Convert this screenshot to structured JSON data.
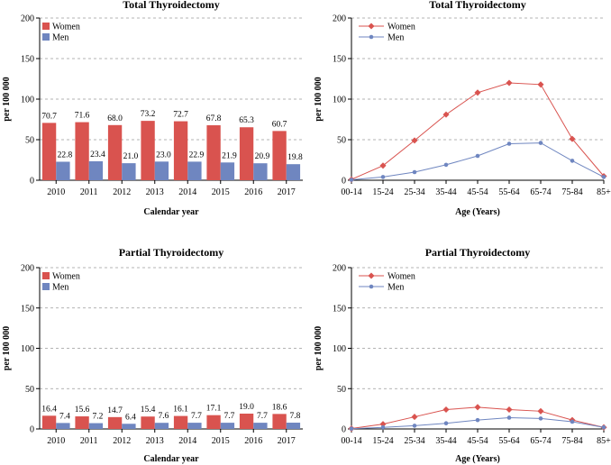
{
  "chart_data": [
    {
      "id": "c1",
      "type": "bar",
      "title": "Total Thyroidectomy",
      "xlabel": "Calendar year",
      "ylabel": "per 100 000",
      "ylim": [
        0,
        200
      ],
      "yticks": [
        0,
        50,
        100,
        150,
        200
      ],
      "categories": [
        "2010",
        "2011",
        "2012",
        "2013",
        "2014",
        "2015",
        "2016",
        "2017"
      ],
      "series": [
        {
          "name": "Women",
          "color": "#d9534f",
          "values": [
            70.7,
            71.6,
            68.0,
            73.2,
            72.7,
            67.8,
            65.3,
            60.7
          ],
          "labels": [
            "70.7",
            "71.6",
            "68.0",
            "73.2",
            "72.7",
            "67.8",
            "65.3",
            "60.7"
          ]
        },
        {
          "name": "Men",
          "color": "#6f86c0",
          "values": [
            22.8,
            23.4,
            21.0,
            23.0,
            22.9,
            21.9,
            20.9,
            19.8
          ],
          "labels": [
            "22.8",
            "23.4",
            "21.0",
            "23.0",
            "22.9",
            "21.9",
            "20.9",
            "19.8"
          ]
        }
      ],
      "grid": true,
      "legend": "top-left"
    },
    {
      "id": "c2",
      "type": "line",
      "title": "Total Thyroidectomy",
      "xlabel": "Age (Years)",
      "ylabel": "per 100 000",
      "ylim": [
        0,
        200
      ],
      "yticks": [
        0,
        50,
        100,
        150,
        200
      ],
      "categories": [
        "00-14",
        "15-24",
        "25-34",
        "35-44",
        "45-54",
        "55-64",
        "65-74",
        "75-84",
        "85+"
      ],
      "series": [
        {
          "name": "Women",
          "color": "#d9534f",
          "values": [
            1,
            18,
            49,
            81,
            108,
            120,
            118,
            51,
            5
          ]
        },
        {
          "name": "Men",
          "color": "#6f86c0",
          "values": [
            0.5,
            4,
            10,
            19,
            30,
            45,
            46,
            24,
            4
          ]
        }
      ],
      "grid": true,
      "legend": "top-left"
    },
    {
      "id": "c3",
      "type": "bar",
      "title": "Partial Thyroidectomy",
      "xlabel": "Calendar year",
      "ylabel": "per 100 000",
      "ylim": [
        0,
        200
      ],
      "yticks": [
        0,
        50,
        100,
        150,
        200
      ],
      "categories": [
        "2010",
        "2011",
        "2012",
        "2013",
        "2014",
        "2015",
        "2016",
        "2017"
      ],
      "series": [
        {
          "name": "Women",
          "color": "#d9534f",
          "values": [
            16.4,
            15.6,
            14.7,
            15.4,
            16.1,
            17.1,
            19.0,
            18.6
          ],
          "labels": [
            "16.4",
            "15.6",
            "14.7",
            "15.4",
            "16.1",
            "17.1",
            "19.0",
            "18.6"
          ]
        },
        {
          "name": "Men",
          "color": "#6f86c0",
          "values": [
            7.4,
            7.2,
            6.4,
            7.6,
            7.7,
            7.7,
            7.7,
            7.8
          ],
          "labels": [
            "7.4",
            "7.2",
            "6.4",
            "7.6",
            "7.7",
            "7.7",
            "7.7",
            "7.8"
          ]
        }
      ],
      "grid": true,
      "legend": "top-left"
    },
    {
      "id": "c4",
      "type": "line",
      "title": "Partial Thyroidectomy",
      "xlabel": "Age (Years)",
      "ylabel": "per 100 000",
      "ylim": [
        0,
        200
      ],
      "yticks": [
        0,
        50,
        100,
        150,
        200
      ],
      "categories": [
        "00-14",
        "15-24",
        "25-34",
        "35-44",
        "45-54",
        "55-64",
        "65-74",
        "75-84",
        "85+"
      ],
      "series": [
        {
          "name": "Women",
          "color": "#d9534f",
          "values": [
            0.5,
            6,
            15,
            24,
            27,
            24,
            22,
            11,
            2
          ]
        },
        {
          "name": "Men",
          "color": "#6f86c0",
          "values": [
            0.3,
            2,
            4,
            7,
            11,
            14,
            13,
            9,
            2
          ]
        }
      ],
      "grid": true,
      "legend": "top-left"
    }
  ]
}
